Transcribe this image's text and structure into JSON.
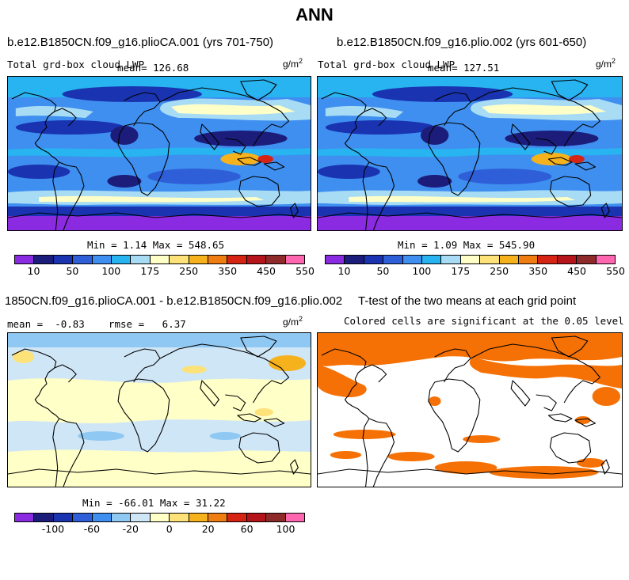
{
  "page_title": "ANN",
  "colors": {
    "lwp_palette": [
      "#8a2be2",
      "#1c1c7a",
      "#1a33b0",
      "#2f5fd8",
      "#3f8ff0",
      "#27b4f0",
      "#a8dcf5",
      "#ffffc8",
      "#fde27a",
      "#f6b21d",
      "#f07d12",
      "#d52413",
      "#b5141a",
      "#8e2a2a",
      "#ff66b0"
    ],
    "diff_palette": [
      "#8a2be2",
      "#1c1c7a",
      "#1a33b0",
      "#2f5fd8",
      "#3f8ff0",
      "#8fc8f3",
      "#cfe6f7",
      "#ffffc8",
      "#fde27a",
      "#f6b21d",
      "#f07d12",
      "#d52413",
      "#b5141a",
      "#8e2a2a",
      "#ff66b0"
    ],
    "significant": "#f57105"
  },
  "panels": {
    "top_left": {
      "case": "b.e12.B1850CN.f09_g16.plioCA.001 (yrs 701-750)",
      "variable": "Total grd-box cloud LWP",
      "mean_text": "mean= 126.68",
      "units": "g/m",
      "units_exp": "2",
      "minmax": "Min =   1.14 Max = 548.65"
    },
    "top_right": {
      "case": "b.e12.B1850CN.f09_g16.plio.002 (yrs 601-650)",
      "variable": "Total grd-box cloud LWP",
      "mean_text": "mean= 127.51",
      "units": "g/m",
      "units_exp": "2",
      "minmax": "Min =   1.09 Max = 545.90"
    },
    "bottom_left": {
      "case": "1850CN.f09_g16.plioCA.001 - b.e12.B1850CN.f09_g16.plio.002",
      "stats": "mean =  -0.83    rmse =   6.37",
      "units": "g/m",
      "units_exp": "2",
      "minmax": "Min = -66.01 Max =  31.22"
    },
    "bottom_right": {
      "title": "T-test of the two means at each grid point",
      "subtitle": "Colored cells are significant at the 0.05 level"
    }
  },
  "chart_data": [
    {
      "type": "heatmap",
      "title": "b.e12.B1850CN.f09_g16.plioCA.001 (yrs 701-750)",
      "variable": "Total grd-box cloud LWP",
      "units": "g/m2",
      "mean": 126.68,
      "min": 1.14,
      "max": 548.65,
      "colorbar_labels": [
        "10",
        "50",
        "100",
        "175",
        "250",
        "350",
        "450",
        "550"
      ]
    },
    {
      "type": "heatmap",
      "title": "b.e12.B1850CN.f09_g16.plio.002 (yrs 601-650)",
      "variable": "Total grd-box cloud LWP",
      "units": "g/m2",
      "mean": 127.51,
      "min": 1.09,
      "max": 545.9,
      "colorbar_labels": [
        "10",
        "50",
        "100",
        "175",
        "250",
        "350",
        "450",
        "550"
      ]
    },
    {
      "type": "heatmap",
      "title": "1850CN.f09_g16.plioCA.001 - b.e12.B1850CN.f09_g16.plio.002",
      "units": "g/m2",
      "mean": -0.83,
      "rmse": 6.37,
      "min": -66.01,
      "max": 31.22,
      "colorbar_labels": [
        "-100",
        "-60",
        "-20",
        "0",
        "20",
        "60",
        "100"
      ]
    },
    {
      "type": "heatmap",
      "title": "T-test of the two means at each grid point",
      "subtitle": "Colored cells are significant at the 0.05 level"
    }
  ]
}
